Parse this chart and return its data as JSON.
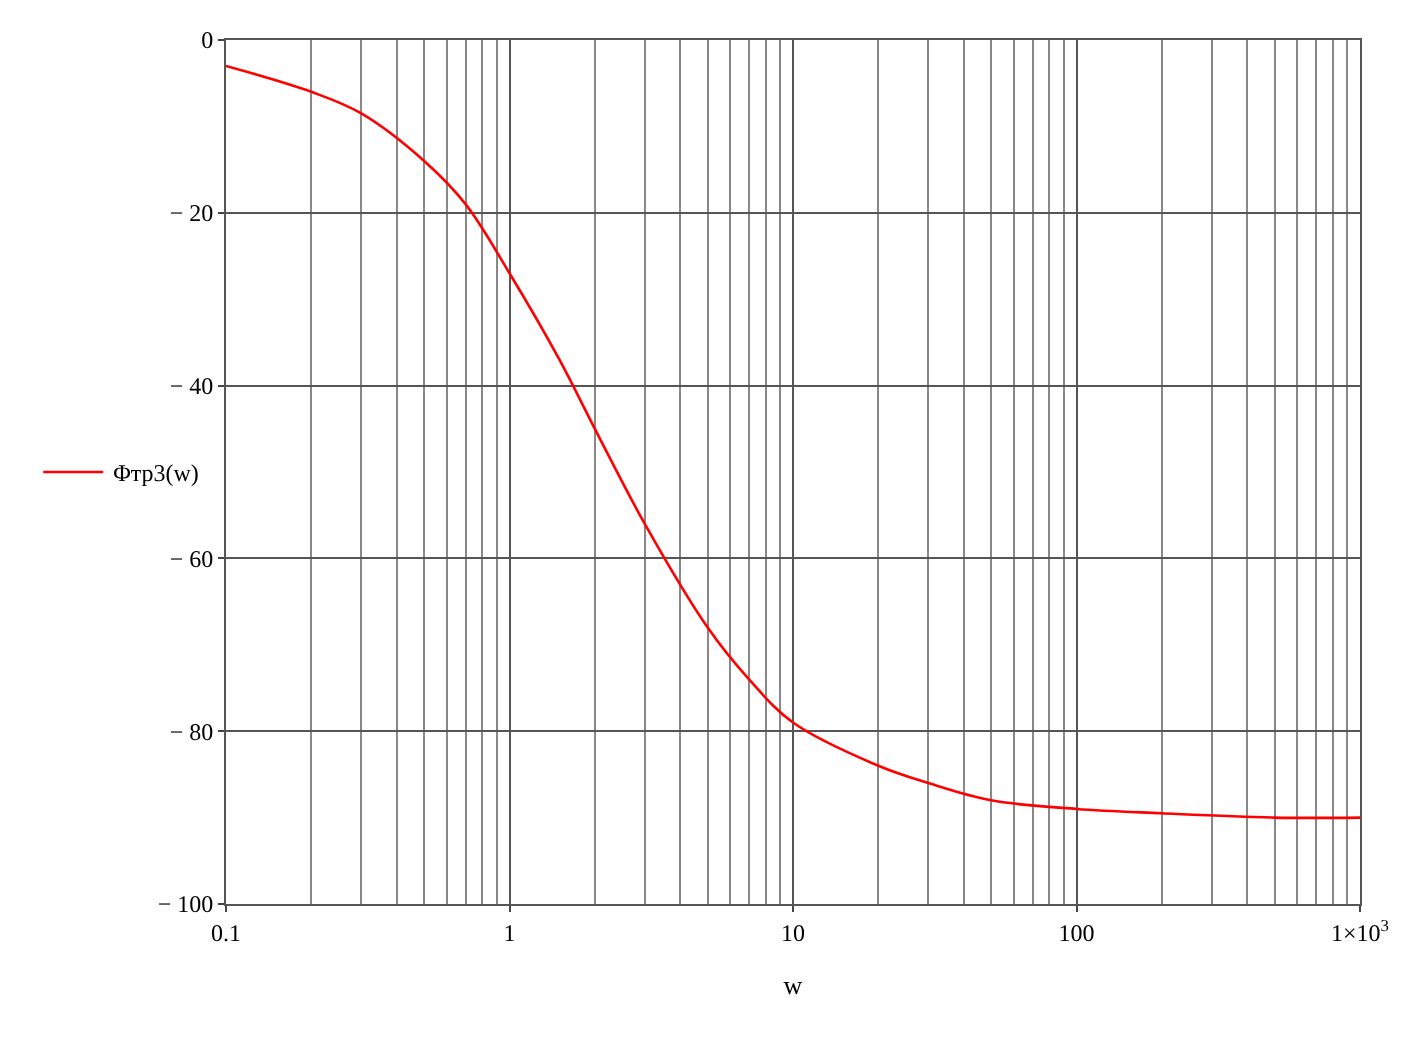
{
  "chart_data": {
    "type": "line",
    "xlabel": "w",
    "x": [
      0.1,
      0.2,
      0.3,
      0.5,
      0.7,
      1,
      1.5,
      2,
      3,
      5,
      7,
      10,
      20,
      30,
      50,
      100,
      200,
      500,
      1000
    ],
    "series": [
      {
        "name": "Φтр3(w)",
        "color": "#ff0000",
        "values": [
          -3,
          -6,
          -8.5,
          -14,
          -19,
          -27,
          -37,
          -45,
          -56,
          -68,
          -74,
          -79,
          -84,
          -86,
          -88,
          -89,
          -89.5,
          -90,
          -90
        ]
      }
    ],
    "xlim": [
      0.1,
      1000
    ],
    "xticks": [
      0.1,
      1,
      10,
      100,
      {
        "value": 1000,
        "label": "1×10$^{3}$"
      }
    ],
    "ylim": [
      -100,
      0
    ],
    "yticks": [
      {
        "value": -100,
        "label": "− 100"
      },
      {
        "value": -80,
        "label": "− 80"
      },
      {
        "value": -60,
        "label": "− 60"
      },
      {
        "value": -40,
        "label": "− 40"
      },
      {
        "value": -20,
        "label": "− 20"
      },
      0
    ],
    "log": "x",
    "grid": true,
    "legend": "left",
    "marker": "none",
    "line_style": "solid"
  }
}
